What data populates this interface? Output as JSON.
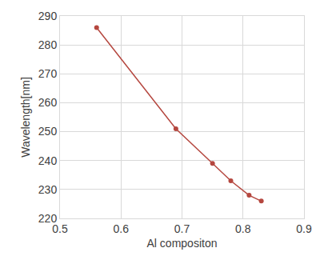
{
  "chart_data": {
    "type": "line",
    "x_label": "Al compositon",
    "y_label": "Wavelength[nm]",
    "x": [
      0.56,
      0.69,
      0.75,
      0.78,
      0.81,
      0.83
    ],
    "values": [
      286,
      251,
      239,
      233,
      228,
      226
    ],
    "color": "#b5473f",
    "marker": "circle",
    "line_style": "solid",
    "xlim": [
      0.5,
      0.9
    ],
    "xticks": [
      0.5,
      0.6,
      0.7,
      0.8,
      0.9
    ],
    "ylim": [
      220,
      290
    ],
    "yticks": [
      220,
      230,
      240,
      250,
      260,
      270,
      280,
      290
    ],
    "grid": true
  }
}
